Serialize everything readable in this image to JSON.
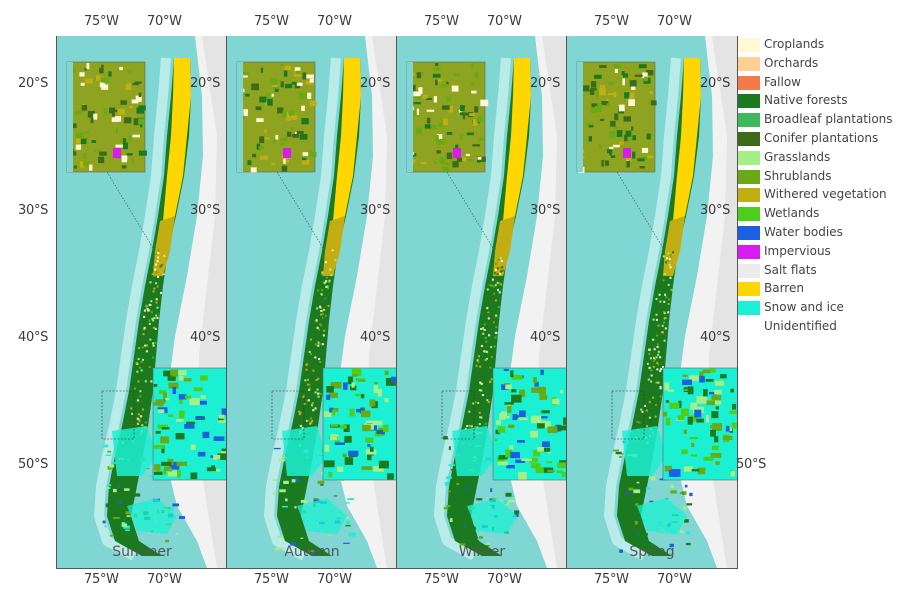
{
  "top_axis": [
    "75°W",
    "70°W",
    "75°W",
    "70°W",
    "75°W",
    "70°W",
    "75°W",
    "70°W"
  ],
  "bottom_axis": [
    "75°W",
    "70°W",
    "75°W",
    "70°W",
    "75°W",
    "70°W",
    "75°W",
    "70°W"
  ],
  "left_axis": [
    "20°S",
    "30°S",
    "40°S",
    "50°S"
  ],
  "inner_lat_labels": [
    "20°S",
    "30°S",
    "40°S",
    "50°S"
  ],
  "panels": [
    {
      "season": "Summer"
    },
    {
      "season": "Autumn"
    },
    {
      "season": "Winter"
    },
    {
      "season": "Spring"
    }
  ],
  "legend": [
    {
      "label": "Croplands",
      "color": "#fff8d4"
    },
    {
      "label": "Orchards",
      "color": "#ffcf94"
    },
    {
      "label": "Fallow",
      "color": "#f47a4a"
    },
    {
      "label": "Native forests",
      "color": "#1b7a1f"
    },
    {
      "label": "Broadleaf plantations",
      "color": "#3fb85c"
    },
    {
      "label": "Conifer plantations",
      "color": "#3c6b1a"
    },
    {
      "label": "Grasslands",
      "color": "#a6ee86"
    },
    {
      "label": "Shrublands",
      "color": "#6aa816"
    },
    {
      "label": "Withered vegetation",
      "color": "#c2ae12"
    },
    {
      "label": "Wetlands",
      "color": "#4ccf1c"
    },
    {
      "label": "Water bodies",
      "color": "#1c5fe0"
    },
    {
      "label": "Impervious",
      "color": "#d81cf0"
    },
    {
      "label": "Salt flats",
      "color": "#ececec"
    },
    {
      "label": "Barren",
      "color": "#ffd600"
    },
    {
      "label": "Snow and ice",
      "color": "#1cf0d2"
    },
    {
      "label": "Unidentified",
      "color": "#ffffff"
    }
  ]
}
